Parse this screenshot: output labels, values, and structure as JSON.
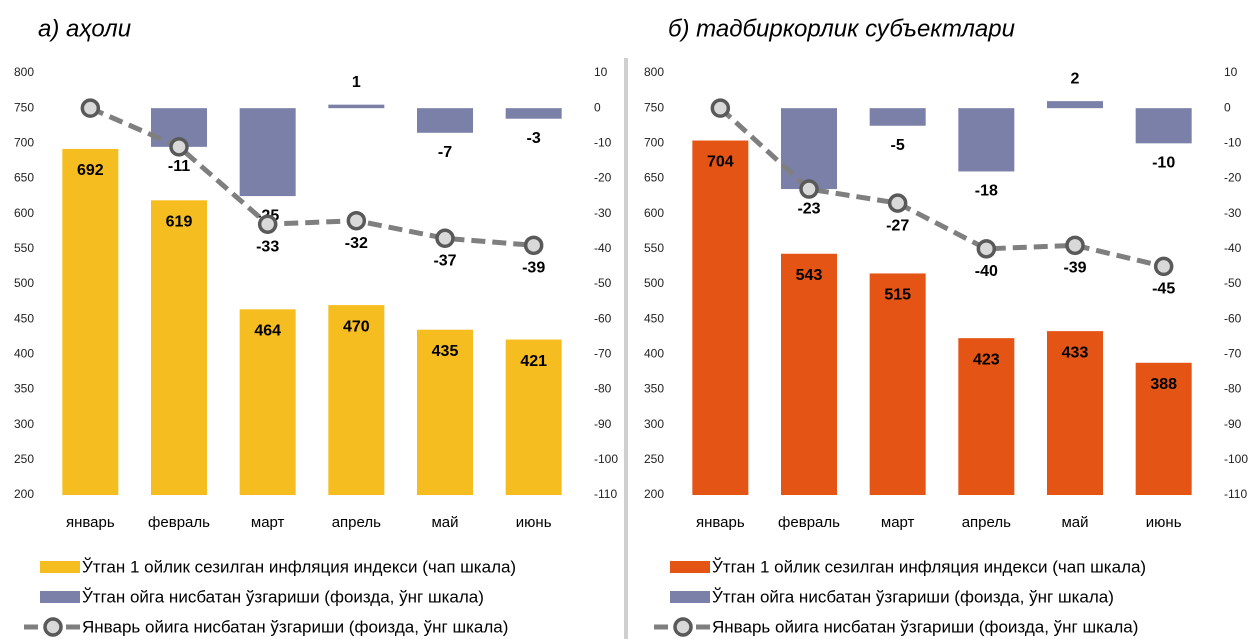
{
  "chart_data": [
    {
      "type": "bar_line",
      "title": "а) аҳоли",
      "categories": [
        "январь",
        "февраль",
        "март",
        "апрель",
        "май",
        "июнь"
      ],
      "ylim": [
        200,
        800
      ],
      "yticks": [
        200,
        250,
        300,
        350,
        400,
        450,
        500,
        550,
        600,
        650,
        700,
        750,
        800
      ],
      "y2lim": [
        -110,
        10
      ],
      "y2ticks": [
        -110,
        -100,
        -90,
        -80,
        -70,
        -60,
        -50,
        -40,
        -30,
        -20,
        -10,
        0,
        10
      ],
      "series": [
        {
          "name": "Ўтган 1 ойлик сезилган инфляция индекси (чап шкала)",
          "color": "#f5bd1f",
          "kind": "bar",
          "values": [
            692,
            619,
            464,
            470,
            435,
            421
          ]
        },
        {
          "name": "Ўтган ойга нисбатан ўзгариши (фоизда, ўнг шкала)",
          "color": "#7a80a8",
          "kind": "bar",
          "axis": "y2",
          "values": [
            null,
            -11,
            -25,
            1,
            -7,
            -3
          ]
        },
        {
          "name": "Январь ойига нисбатан ўзгариши  (фоизда, ўнг шкала)",
          "color": "#7f7f7f",
          "kind": "line",
          "axis": "y2",
          "values": [
            0,
            -11,
            -33,
            -32,
            -37,
            -39
          ]
        }
      ]
    },
    {
      "type": "bar_line",
      "title": "б) тадбиркорлик субъектлари",
      "categories": [
        "январь",
        "февраль",
        "март",
        "апрель",
        "май",
        "июнь"
      ],
      "ylim": [
        200,
        800
      ],
      "yticks": [
        200,
        250,
        300,
        350,
        400,
        450,
        500,
        550,
        600,
        650,
        700,
        750,
        800
      ],
      "y2lim": [
        -110,
        10
      ],
      "y2ticks": [
        -110,
        -100,
        -90,
        -80,
        -70,
        -60,
        -50,
        -40,
        -30,
        -20,
        -10,
        0,
        10
      ],
      "series": [
        {
          "name": "Ўтган 1 ойлик сезилган инфляция индекси (чап шкала)",
          "color": "#e35415",
          "kind": "bar",
          "values": [
            704,
            543,
            515,
            423,
            433,
            388
          ]
        },
        {
          "name": "Ўтган ойга нисбатан ўзгариши (фоизда, ўнг шкала)",
          "color": "#7a80a8",
          "kind": "bar",
          "axis": "y2",
          "values": [
            null,
            -23,
            -5,
            -18,
            2,
            -10
          ]
        },
        {
          "name": "Январь ойига нисбатан ўзгариши  (фоизда, ўнг шкала)",
          "color": "#7f7f7f",
          "kind": "line",
          "axis": "y2",
          "values": [
            0,
            -23,
            -27,
            -40,
            -39,
            -45
          ]
        }
      ]
    }
  ]
}
